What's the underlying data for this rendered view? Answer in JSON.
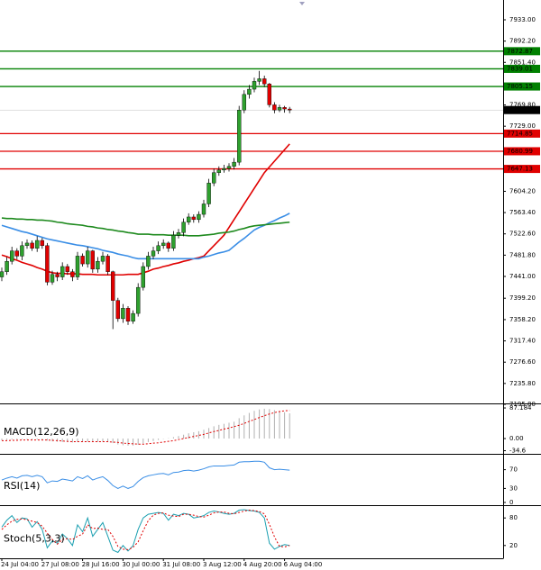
{
  "chart_data": [
    {
      "type": "candlestick",
      "categories": [
        "24 Jul 04:00",
        null,
        null,
        null,
        null,
        null,
        null,
        null,
        "27 Jul 08:00",
        null,
        null,
        null,
        null,
        null,
        null,
        null,
        "28 Jul 16:00",
        null,
        null,
        null,
        null,
        null,
        null,
        null,
        "30 Jul 00:00",
        null,
        null,
        null,
        null,
        null,
        null,
        null,
        "31 Jul 08:00",
        null,
        null,
        null,
        null,
        null,
        null,
        null,
        "3 Aug 12:00",
        null,
        null,
        null,
        null,
        null,
        null,
        null,
        "4 Aug 20:00",
        null,
        null,
        null,
        null,
        null,
        null,
        null,
        "6 Aug 04:00",
        null
      ],
      "open": [
        7440,
        7450,
        7470,
        7490,
        7480,
        7500,
        7505,
        7495,
        7510,
        7500,
        7430,
        7445,
        7440,
        7460,
        7450,
        7440,
        7480,
        7465,
        7490,
        7455,
        7470,
        7480,
        7450,
        7395,
        7360,
        7380,
        7355,
        7370,
        7420,
        7460,
        7480,
        7490,
        7500,
        7505,
        7495,
        7520,
        7525,
        7545,
        7555,
        7550,
        7560,
        7580,
        7620,
        7640,
        7645,
        7648,
        7652,
        7660,
        7760,
        7790,
        7800,
        7815,
        7820,
        7810,
        7770,
        7760,
        7765,
        7762
      ],
      "high": [
        7458,
        7478,
        7498,
        7495,
        7508,
        7512,
        7510,
        7518,
        7515,
        7505,
        7452,
        7450,
        7468,
        7465,
        7455,
        7488,
        7485,
        7498,
        7492,
        7478,
        7488,
        7484,
        7452,
        7400,
        7388,
        7384,
        7376,
        7428,
        7468,
        7488,
        7498,
        7508,
        7512,
        7508,
        7528,
        7532,
        7552,
        7562,
        7560,
        7566,
        7588,
        7628,
        7648,
        7652,
        7655,
        7658,
        7668,
        7768,
        7798,
        7808,
        7822,
        7835,
        7826,
        7812,
        7775,
        7770,
        7768,
        7766
      ],
      "low": [
        7432,
        7444,
        7464,
        7474,
        7472,
        7494,
        7490,
        7488,
        7494,
        7424,
        7425,
        7432,
        7434,
        7444,
        7432,
        7434,
        7460,
        7458,
        7448,
        7448,
        7464,
        7444,
        7340,
        7354,
        7352,
        7348,
        7350,
        7364,
        7414,
        7454,
        7474,
        7484,
        7494,
        7488,
        7490,
        7514,
        7518,
        7540,
        7544,
        7544,
        7554,
        7574,
        7614,
        7634,
        7640,
        7642,
        7646,
        7654,
        7754,
        7782,
        7794,
        7808,
        7804,
        7765,
        7754,
        7756,
        7755,
        7754
      ],
      "close": [
        7450,
        7470,
        7490,
        7480,
        7500,
        7505,
        7495,
        7510,
        7500,
        7430,
        7445,
        7440,
        7460,
        7450,
        7440,
        7480,
        7465,
        7490,
        7455,
        7470,
        7480,
        7450,
        7395,
        7360,
        7380,
        7355,
        7370,
        7420,
        7460,
        7480,
        7490,
        7500,
        7505,
        7495,
        7520,
        7525,
        7545,
        7555,
        7550,
        7560,
        7580,
        7620,
        7640,
        7645,
        7648,
        7652,
        7660,
        7760,
        7790,
        7800,
        7815,
        7820,
        7810,
        7770,
        7760,
        7765,
        7762,
        7760
      ],
      "up_color": "#2ea02e",
      "down_color": "#e00000",
      "lines": [
        {
          "color": "#e00000",
          "values": [
            7482,
            7479,
            7475,
            7472,
            7468,
            7465,
            7462,
            7458,
            7455,
            7451,
            7448,
            7447,
            7447,
            7446,
            7446,
            7446,
            7445,
            7445,
            7445,
            7444,
            7444,
            7444,
            7444,
            7444,
            7444,
            7445,
            7445,
            7445,
            7448,
            7451,
            7455,
            7457,
            7460,
            7462,
            7465,
            7467,
            7470,
            7472,
            7475,
            7477,
            7480,
            7490,
            7500,
            7510,
            7520,
            7535,
            7550,
            7565,
            7580,
            7595,
            7610,
            7625,
            7640,
            7651,
            7662,
            7673,
            7684,
            7695
          ]
        },
        {
          "color": "#3a8ee6",
          "values": [
            7539,
            7536,
            7533,
            7530,
            7527,
            7525,
            7522,
            7519,
            7516,
            7513,
            7511,
            7509,
            7507,
            7505,
            7503,
            7501,
            7500,
            7498,
            7496,
            7494,
            7491,
            7489,
            7487,
            7484,
            7482,
            7480,
            7477,
            7475,
            7475,
            7475,
            7475,
            7475,
            7475,
            7475,
            7475,
            7475,
            7475,
            7475,
            7475,
            7475,
            7478,
            7480,
            7483,
            7486,
            7488,
            7491,
            7499,
            7507,
            7514,
            7522,
            7530,
            7535,
            7539,
            7544,
            7548,
            7553,
            7557,
            7562
          ]
        },
        {
          "color": "#1e8a1e",
          "values": [
            7553,
            7552,
            7552,
            7551,
            7551,
            7550,
            7550,
            7549,
            7549,
            7548,
            7547,
            7545,
            7544,
            7542,
            7541,
            7540,
            7539,
            7537,
            7536,
            7534,
            7533,
            7531,
            7530,
            7528,
            7527,
            7525,
            7524,
            7522,
            7522,
            7522,
            7521,
            7521,
            7521,
            7520,
            7520,
            7520,
            7520,
            7519,
            7519,
            7519,
            7520,
            7521,
            7522,
            7524,
            7525,
            7526,
            7528,
            7531,
            7533,
            7536,
            7538,
            7539,
            7540,
            7541,
            7542,
            7543,
            7544,
            7545
          ]
        }
      ],
      "levels": [
        {
          "value": 7872.87,
          "color": "#008000"
        },
        {
          "value": 7839.01,
          "color": "#008000"
        },
        {
          "value": 7805.15,
          "color": "#008000"
        },
        {
          "value": 7714.85,
          "color": "#e00000"
        },
        {
          "value": 7680.99,
          "color": "#e00000"
        },
        {
          "value": 7647.13,
          "color": "#e00000"
        }
      ],
      "current": {
        "value": 7760,
        "label": "7760.00"
      },
      "ylim": [
        7195.8,
        7971
      ],
      "yticks": [
        {
          "value": 7933,
          "label": "7933.00"
        },
        {
          "value": 7892.2,
          "label": "7892.20"
        },
        {
          "value": 7851.4,
          "label": "7851.40"
        },
        {
          "value": 7769.8,
          "label": "7769.80"
        },
        {
          "value": 7729,
          "label": "7729.00"
        },
        {
          "value": 7604.2,
          "label": "7604.20"
        },
        {
          "value": 7563.4,
          "label": "7563.40"
        },
        {
          "value": 7522.6,
          "label": "7522.60"
        },
        {
          "value": 7481.8,
          "label": "7481.80"
        },
        {
          "value": 7441,
          "label": "7441.00"
        },
        {
          "value": 7399.2,
          "label": "7399.20"
        },
        {
          "value": 7358.2,
          "label": "7358.20"
        },
        {
          "value": 7317.4,
          "label": "7317.40"
        },
        {
          "value": 7276.6,
          "label": "7276.60"
        },
        {
          "value": 7235.8,
          "label": "7235.80"
        },
        {
          "value": 7195.8,
          "label": "7195.80"
        }
      ]
    },
    {
      "type": "macd",
      "title": "MACD(12,26,9)",
      "color": "#b0b0b0",
      "values": [
        -5,
        -4,
        -3,
        -3,
        -2,
        -2,
        -3,
        -3,
        -4,
        -6,
        -8,
        -9,
        -10,
        -10,
        -11,
        -10,
        -10,
        -9,
        -9,
        -9,
        -9,
        -10,
        -13,
        -17,
        -19,
        -20,
        -20,
        -18,
        -14,
        -10,
        -7,
        -4,
        -1,
        1,
        4,
        7,
        11,
        15,
        18,
        21,
        25,
        30,
        35,
        39,
        42,
        45,
        48,
        58,
        66,
        73,
        79,
        83,
        85,
        84,
        81,
        78,
        75,
        72
      ],
      "signal": {
        "color": "#e00000",
        "values": [
          -6,
          -6,
          -5,
          -5,
          -4,
          -4,
          -4,
          -4,
          -4,
          -4,
          -5,
          -6,
          -7,
          -8,
          -9,
          -9,
          -9,
          -9,
          -9,
          -9,
          -9,
          -9,
          -10,
          -11,
          -13,
          -14,
          -15,
          -16,
          -16,
          -15,
          -13,
          -12,
          -10,
          -8,
          -6,
          -3,
          0,
          3,
          6,
          9,
          12,
          16,
          20,
          23,
          27,
          30,
          34,
          38,
          43,
          49,
          54,
          60,
          65,
          70,
          74,
          77,
          79,
          80
        ]
      },
      "ylim": [
        -41,
        95
      ],
      "yticks": [
        87.184,
        {
          "value": 0,
          "label": "0.00"
        },
        -34.6
      ]
    },
    {
      "type": "line",
      "title": "RSI(14)",
      "series": [
        {
          "color": "#3a8ee6",
          "values": [
            48,
            52,
            55,
            52,
            57,
            58,
            55,
            58,
            55,
            42,
            46,
            45,
            50,
            48,
            46,
            55,
            51,
            57,
            48,
            52,
            55,
            47,
            36,
            30,
            35,
            30,
            34,
            45,
            53,
            57,
            59,
            61,
            62,
            59,
            64,
            65,
            68,
            69,
            67,
            69,
            72,
            76,
            78,
            78,
            78,
            79,
            80,
            86,
            87,
            87,
            88,
            88,
            86,
            74,
            70,
            71,
            70,
            69
          ]
        }
      ],
      "ylim": [
        0,
        100
      ],
      "yticks": [
        70,
        30,
        0
      ]
    },
    {
      "type": "line",
      "title": "Stoch(5,3,3)",
      "series": [
        {
          "color": "#1a9fb0",
          "values": [
            60,
            75,
            85,
            70,
            80,
            78,
            60,
            72,
            55,
            15,
            30,
            25,
            45,
            35,
            20,
            65,
            50,
            80,
            40,
            55,
            70,
            40,
            10,
            5,
            20,
            8,
            20,
            55,
            80,
            88,
            90,
            92,
            90,
            75,
            88,
            85,
            90,
            88,
            80,
            82,
            85,
            92,
            95,
            93,
            90,
            88,
            90,
            97,
            98,
            96,
            95,
            92,
            80,
            25,
            12,
            18,
            22,
            20
          ]
        },
        {
          "color": "#e00000",
          "dashed": true,
          "values": [
            55,
            65,
            73,
            77,
            78,
            76,
            73,
            70,
            62,
            47,
            33,
            23,
            33,
            35,
            33,
            40,
            45,
            65,
            57,
            58,
            55,
            55,
            40,
            18,
            12,
            11,
            16,
            28,
            52,
            74,
            86,
            90,
            91,
            86,
            84,
            83,
            88,
            88,
            86,
            83,
            82,
            86,
            91,
            93,
            93,
            90,
            89,
            92,
            95,
            97,
            96,
            94,
            89,
            66,
            39,
            18,
            17,
            20
          ]
        }
      ],
      "ylim": [
        0,
        100
      ],
      "yticks": [
        80,
        20
      ]
    }
  ]
}
